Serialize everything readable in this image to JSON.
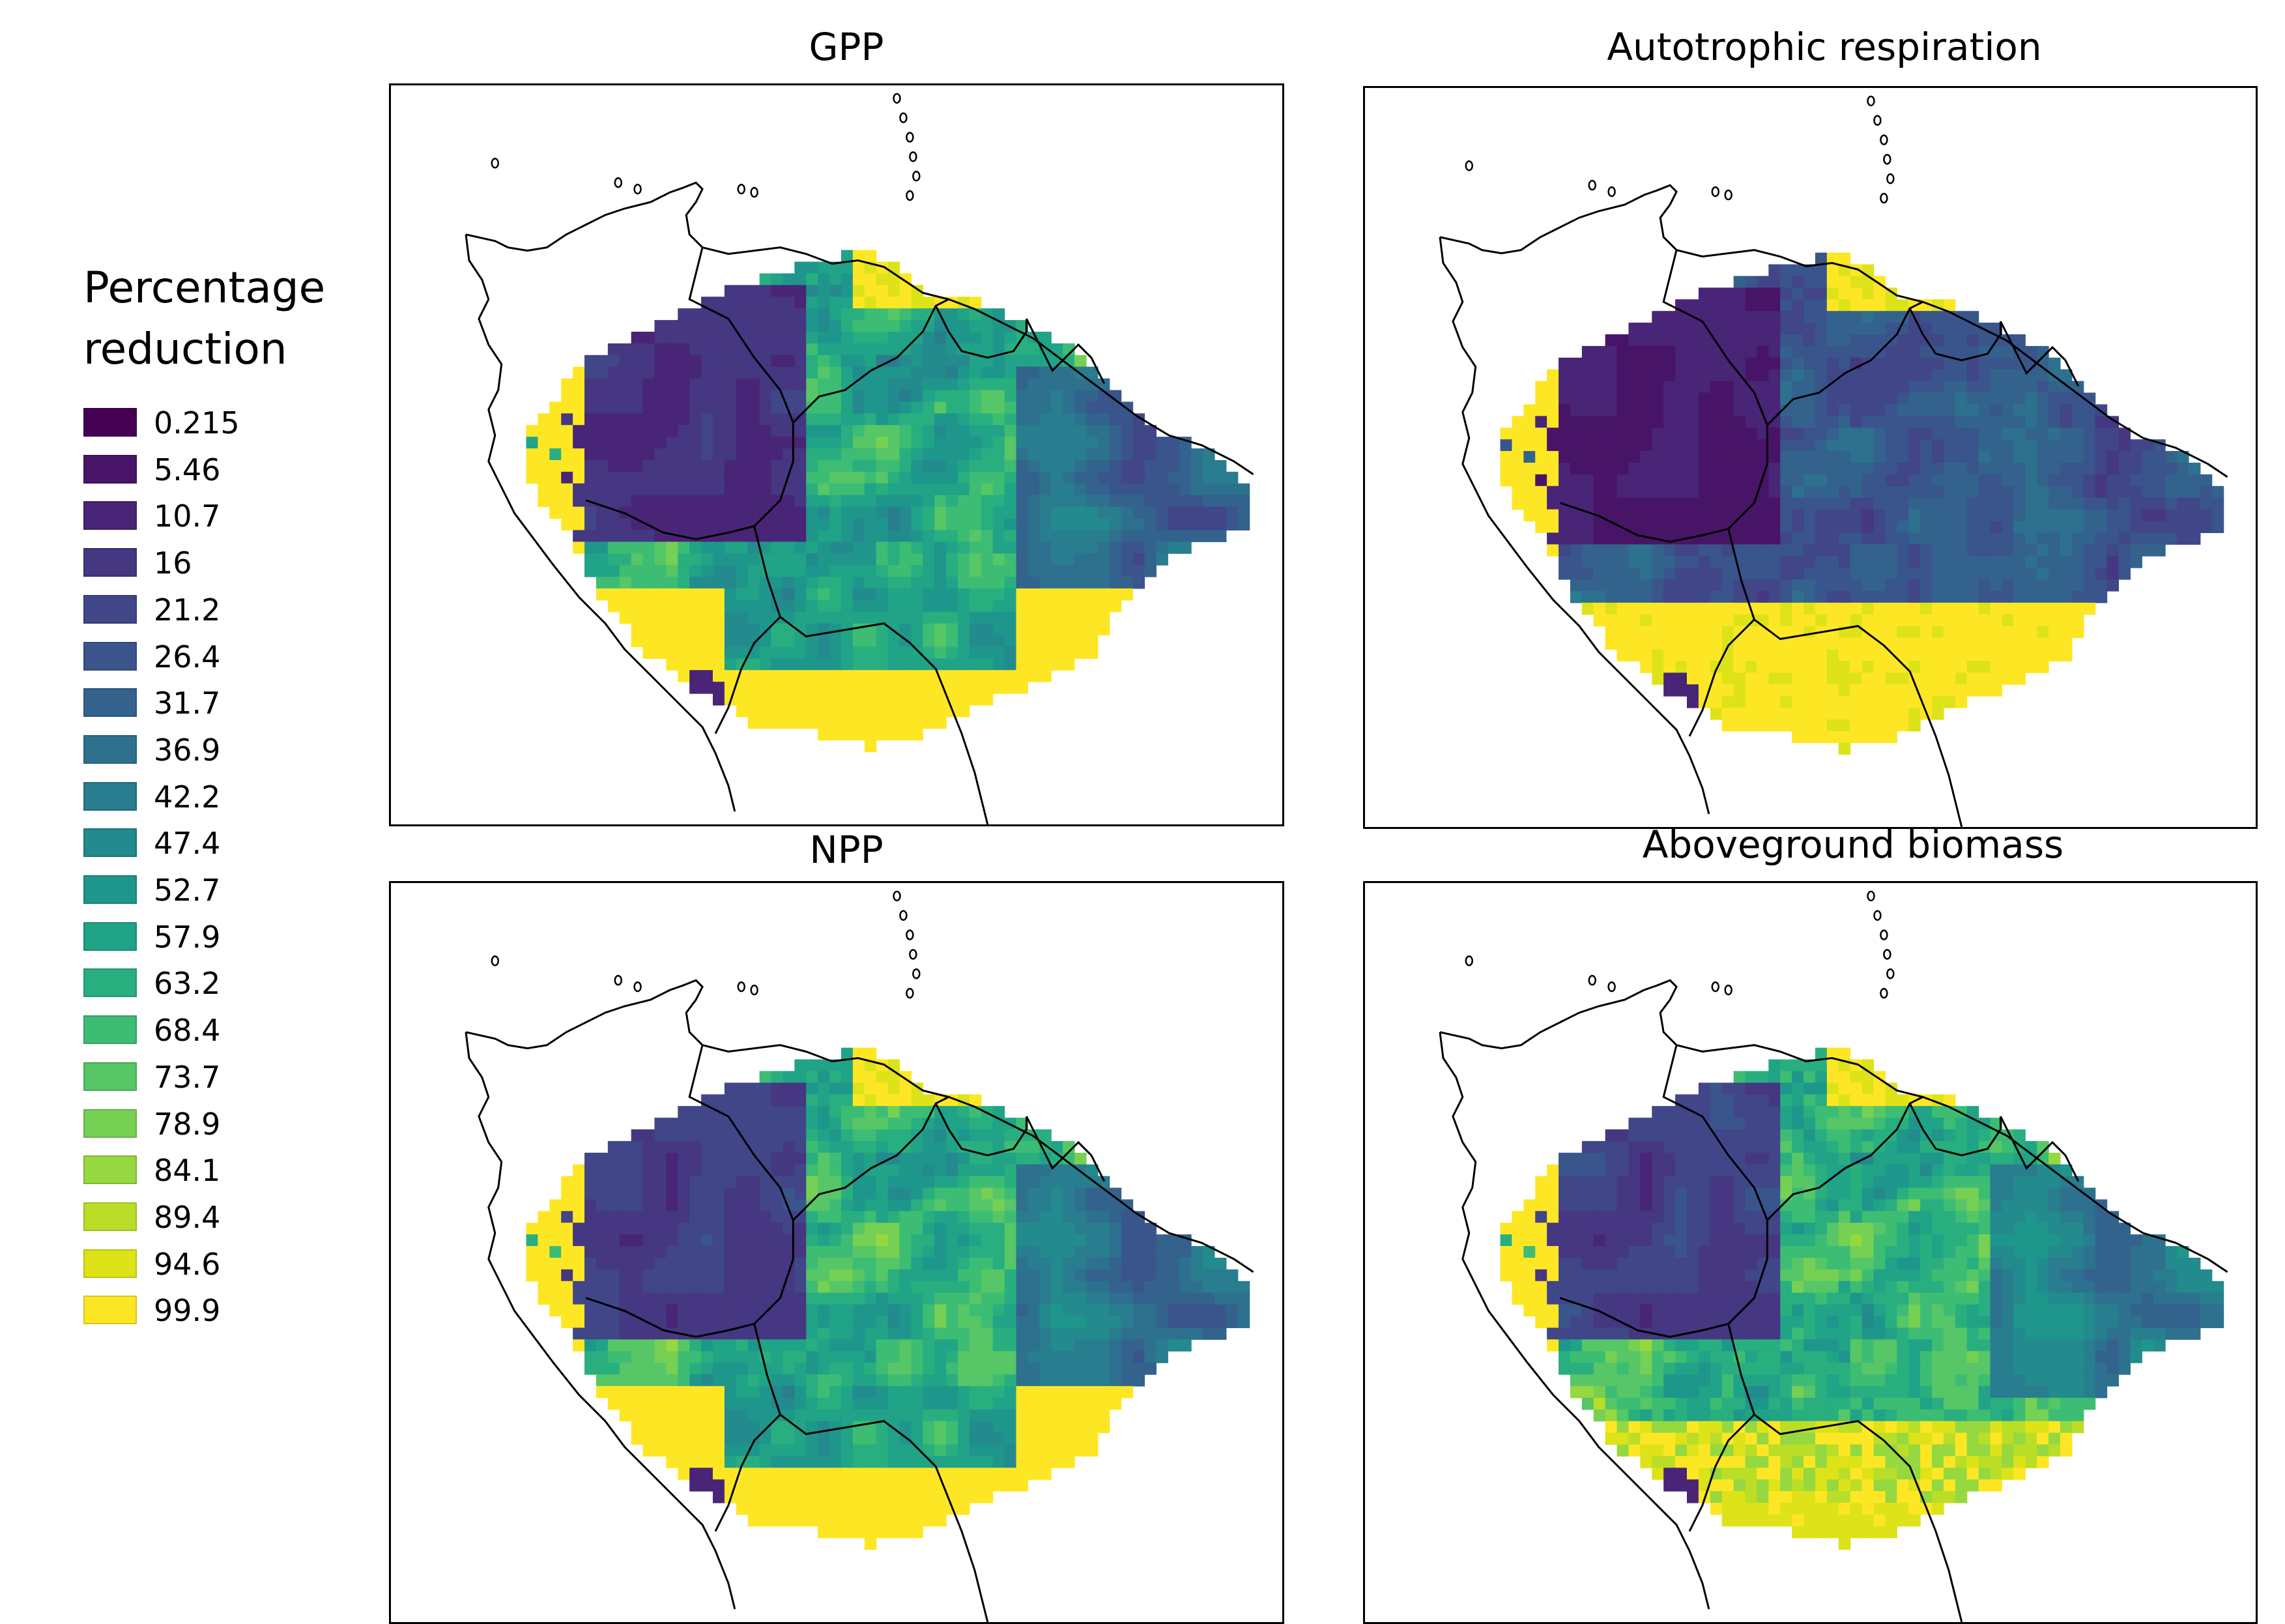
{
  "legend": {
    "title_line1": "Percentage",
    "title_line2": "reduction",
    "items": [
      {
        "label": "0.215",
        "color": "#440154"
      },
      {
        "label": "5.46",
        "color": "#481467"
      },
      {
        "label": "10.7",
        "color": "#482576"
      },
      {
        "label": "16",
        "color": "#453781"
      },
      {
        "label": "21.2",
        "color": "#404688"
      },
      {
        "label": "26.4",
        "color": "#39558c"
      },
      {
        "label": "31.7",
        "color": "#33638d"
      },
      {
        "label": "36.9",
        "color": "#2d718e"
      },
      {
        "label": "42.2",
        "color": "#287d8e"
      },
      {
        "label": "47.4",
        "color": "#238a8d"
      },
      {
        "label": "52.7",
        "color": "#1f968b"
      },
      {
        "label": "57.9",
        "color": "#20a386"
      },
      {
        "label": "63.2",
        "color": "#29af7f"
      },
      {
        "label": "68.4",
        "color": "#3dbc74"
      },
      {
        "label": "73.7",
        "color": "#56c667"
      },
      {
        "label": "78.9",
        "color": "#75d054"
      },
      {
        "label": "84.1",
        "color": "#95d840"
      },
      {
        "label": "89.4",
        "color": "#bade28"
      },
      {
        "label": "94.6",
        "color": "#dde318"
      },
      {
        "label": "99.9",
        "color": "#fde725"
      }
    ]
  },
  "panels": [
    {
      "title": "GPP",
      "pattern": "gpp"
    },
    {
      "title": "Autotrophic respiration",
      "pattern": "ra"
    },
    {
      "title": "NPP",
      "pattern": "npp"
    },
    {
      "title": "Aboveground biomass",
      "pattern": "agb"
    }
  ]
}
